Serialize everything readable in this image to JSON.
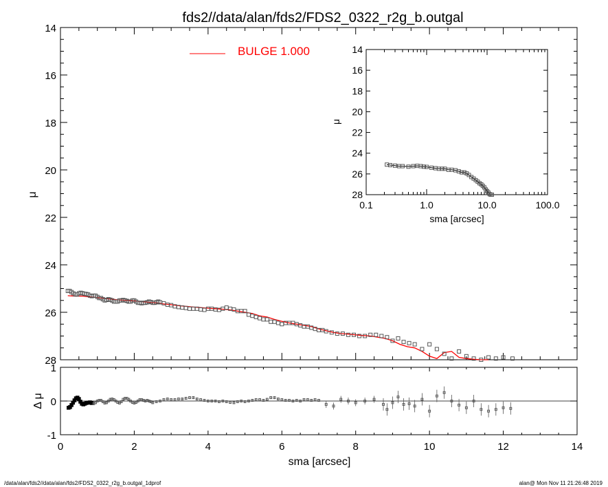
{
  "title": "fds2//data/alan/fds2/FDS2_0322_r2g_b.outgal",
  "footer": {
    "left": "/data/alan/fds2//data/alan/fds2/FDS2_0322_r2g_b.outgal_1dprof",
    "right": "alan@  Mon Nov 11 21:26:48 2019"
  },
  "colors": {
    "model": "#ff0000",
    "points": "#555555",
    "axes": "#000000"
  },
  "chart_data": [
    {
      "id": "main",
      "type": "scatter",
      "xlabel": "",
      "ylabel": "μ",
      "xlim": [
        0,
        14
      ],
      "ylim": [
        28,
        14
      ],
      "yticks": [
        "14",
        "16",
        "18",
        "20",
        "22",
        "24",
        "26",
        "28"
      ],
      "legend": {
        "label": "BULGE  1.000",
        "placement": "top-center"
      },
      "series": [
        {
          "name": "data",
          "x": [
            0.2,
            0.25,
            0.3,
            0.35,
            0.4,
            0.45,
            0.5,
            0.55,
            0.6,
            0.65,
            0.7,
            0.75,
            0.8,
            0.85,
            0.9,
            0.95,
            1.0,
            1.05,
            1.1,
            1.15,
            1.2,
            1.25,
            1.3,
            1.35,
            1.4,
            1.45,
            1.5,
            1.55,
            1.6,
            1.65,
            1.7,
            1.75,
            1.8,
            1.85,
            1.9,
            1.95,
            2.0,
            2.05,
            2.1,
            2.15,
            2.2,
            2.25,
            2.3,
            2.35,
            2.4,
            2.45,
            2.5,
            2.55,
            2.6,
            2.65,
            2.7,
            2.8,
            2.9,
            3.0,
            3.1,
            3.2,
            3.3,
            3.4,
            3.5,
            3.6,
            3.7,
            3.8,
            3.9,
            4.0,
            4.1,
            4.2,
            4.3,
            4.4,
            4.5,
            4.6,
            4.7,
            4.8,
            4.9,
            5.0,
            5.1,
            5.2,
            5.3,
            5.4,
            5.5,
            5.6,
            5.7,
            5.8,
            5.9,
            6.0,
            6.1,
            6.2,
            6.3,
            6.4,
            6.5,
            6.6,
            6.7,
            6.8,
            6.9,
            7.0,
            7.1,
            7.2,
            7.35,
            7.5,
            7.65,
            7.8,
            7.95,
            8.1,
            8.25,
            8.4,
            8.55,
            8.7,
            8.85,
            9.0,
            9.15,
            9.3,
            9.45,
            9.6,
            9.8,
            10.0,
            10.2,
            10.4,
            10.6,
            10.8,
            11.0,
            11.2,
            11.4,
            11.6,
            11.8,
            12.0,
            12.25
          ],
          "y": [
            25.1,
            25.1,
            25.15,
            25.2,
            25.25,
            25.25,
            25.2,
            25.18,
            25.2,
            25.22,
            25.23,
            25.25,
            25.3,
            25.32,
            25.3,
            25.3,
            25.35,
            25.4,
            25.4,
            25.45,
            25.5,
            25.48,
            25.45,
            25.47,
            25.5,
            25.55,
            25.55,
            25.55,
            25.5,
            25.5,
            25.48,
            25.5,
            25.52,
            25.55,
            25.55,
            25.5,
            25.5,
            25.55,
            25.6,
            25.6,
            25.62,
            25.6,
            25.6,
            25.58,
            25.55,
            25.57,
            25.6,
            25.6,
            25.58,
            25.55,
            25.58,
            25.62,
            25.68,
            25.7,
            25.75,
            25.78,
            25.8,
            25.82,
            25.85,
            25.85,
            25.85,
            25.88,
            25.9,
            25.85,
            25.85,
            25.88,
            25.9,
            25.85,
            25.8,
            25.85,
            25.88,
            25.95,
            25.95,
            25.95,
            26.1,
            26.15,
            26.2,
            26.25,
            26.3,
            26.3,
            26.4,
            26.4,
            26.45,
            26.5,
            26.45,
            26.45,
            26.45,
            26.5,
            26.55,
            26.6,
            26.6,
            26.65,
            26.7,
            26.75,
            26.75,
            26.8,
            26.85,
            26.9,
            26.9,
            26.95,
            26.95,
            27.0,
            27.0,
            26.95,
            26.95,
            27.0,
            27.05,
            27.2,
            27.1,
            27.25,
            27.3,
            27.35,
            27.55,
            27.35,
            27.55,
            27.75,
            27.95,
            27.65,
            27.85,
            27.95,
            28.0,
            27.9,
            27.95,
            27.9,
            27.95
          ]
        },
        {
          "name": "BULGE  1.000",
          "x": [
            0.2,
            0.4,
            0.6,
            0.8,
            1.0,
            1.2,
            1.4,
            1.6,
            1.8,
            2.0,
            2.2,
            2.4,
            2.6,
            2.8,
            3.0,
            3.2,
            3.4,
            3.6,
            3.8,
            4.0,
            4.2,
            4.4,
            4.6,
            4.8,
            5.0,
            5.2,
            5.4,
            5.6,
            5.8,
            6.0,
            6.2,
            6.4,
            6.6,
            6.8,
            7.0,
            7.2,
            7.4,
            7.6,
            7.8,
            8.0,
            8.2,
            8.4,
            8.6,
            8.8,
            9.0,
            9.2,
            9.4,
            9.6,
            9.8,
            10.0,
            10.2,
            10.4,
            10.6,
            10.8,
            11.0,
            11.2,
            11.4,
            11.6
          ],
          "y": [
            25.3,
            25.32,
            25.32,
            25.35,
            25.38,
            25.42,
            25.45,
            25.48,
            25.5,
            25.52,
            25.55,
            25.58,
            25.6,
            25.65,
            25.68,
            25.72,
            25.75,
            25.78,
            25.8,
            25.83,
            25.85,
            25.87,
            25.9,
            25.95,
            26.0,
            26.05,
            26.15,
            26.2,
            26.3,
            26.38,
            26.45,
            26.5,
            26.55,
            26.6,
            26.7,
            26.78,
            26.85,
            26.9,
            26.92,
            26.95,
            26.98,
            27.0,
            27.05,
            27.1,
            27.2,
            27.35,
            27.45,
            27.5,
            27.65,
            27.85,
            27.95,
            27.7,
            27.65,
            27.9,
            27.95,
            27.98,
            28.0,
            28.0
          ]
        }
      ]
    },
    {
      "id": "residual",
      "type": "scatter",
      "xlabel": "sma [arcsec]",
      "ylabel": "Δ μ",
      "xlim": [
        0,
        14
      ],
      "ylim": [
        -1,
        1
      ],
      "xticks": [
        "0",
        "2",
        "4",
        "6",
        "8",
        "10",
        "12",
        "14"
      ],
      "yticks": [
        "-1",
        "0",
        "1"
      ],
      "series": [
        {
          "name": "residual",
          "x": [
            0.22,
            0.26,
            0.3,
            0.34,
            0.38,
            0.42,
            0.46,
            0.5,
            0.54,
            0.58,
            0.62,
            0.66,
            0.7,
            0.75,
            0.8,
            0.85,
            0.9,
            0.95,
            1.0,
            1.05,
            1.1,
            1.15,
            1.2,
            1.25,
            1.3,
            1.35,
            1.4,
            1.45,
            1.5,
            1.55,
            1.6,
            1.65,
            1.7,
            1.75,
            1.8,
            1.85,
            1.9,
            1.95,
            2.0,
            2.05,
            2.1,
            2.15,
            2.2,
            2.25,
            2.3,
            2.35,
            2.4,
            2.45,
            2.5,
            2.6,
            2.7,
            2.8,
            2.9,
            3.0,
            3.1,
            3.2,
            3.3,
            3.4,
            3.5,
            3.6,
            3.7,
            3.8,
            3.9,
            4.0,
            4.1,
            4.2,
            4.3,
            4.4,
            4.5,
            4.6,
            4.7,
            4.8,
            4.9,
            5.0,
            5.1,
            5.2,
            5.3,
            5.4,
            5.5,
            5.6,
            5.7,
            5.8,
            5.9,
            6.0,
            6.1,
            6.2,
            6.3,
            6.4,
            6.5,
            6.6,
            6.7,
            6.8,
            6.9,
            7.0,
            7.2,
            7.4,
            7.6,
            7.8,
            8.0,
            8.25,
            8.5,
            8.75,
            8.85,
            9.0,
            9.15,
            9.3,
            9.45,
            9.6,
            9.8,
            10.0,
            10.2,
            10.4,
            10.6,
            10.8,
            11.0,
            11.2,
            11.4,
            11.6,
            11.8,
            12.0,
            12.2
          ],
          "y": [
            -0.2,
            -0.18,
            -0.12,
            -0.05,
            0.02,
            0.08,
            0.1,
            0.06,
            -0.02,
            -0.08,
            -0.1,
            -0.08,
            -0.06,
            -0.05,
            -0.04,
            -0.06,
            -0.08,
            -0.05,
            0.0,
            0.02,
            0.02,
            -0.02,
            -0.06,
            -0.05,
            0.0,
            0.05,
            0.06,
            0.04,
            0.0,
            -0.04,
            -0.06,
            -0.02,
            0.05,
            0.08,
            0.08,
            0.05,
            0.0,
            -0.04,
            -0.06,
            -0.04,
            0.0,
            0.04,
            0.04,
            0.02,
            0.0,
            0.02,
            0.0,
            -0.02,
            -0.05,
            -0.02,
            0.0,
            0.04,
            0.06,
            0.04,
            0.04,
            0.06,
            0.06,
            0.08,
            0.1,
            0.1,
            0.06,
            0.04,
            0.02,
            0.0,
            0.0,
            0.0,
            -0.02,
            0.0,
            -0.02,
            -0.04,
            -0.05,
            -0.02,
            0.0,
            -0.02,
            0.0,
            0.02,
            0.04,
            0.04,
            0.02,
            0.05,
            0.1,
            0.1,
            0.06,
            0.04,
            0.02,
            0.02,
            0.0,
            0.02,
            0.0,
            0.04,
            0.04,
            0.02,
            0.04,
            0.02,
            -0.1,
            -0.15,
            0.05,
            0.0,
            -0.05,
            0.0,
            0.05,
            -0.1,
            -0.25,
            -0.05,
            0.12,
            -0.1,
            -0.08,
            -0.15,
            0.05,
            -0.3,
            0.15,
            0.25,
            0.0,
            -0.12,
            -0.2,
            0.0,
            -0.25,
            -0.3,
            -0.25,
            -0.2,
            -0.22
          ]
        }
      ]
    },
    {
      "id": "inset",
      "type": "scatter",
      "xlabel": "sma [arcsec]",
      "ylabel": "μ",
      "xscale": "log",
      "xlim": [
        0.1,
        100.0
      ],
      "ylim": [
        28,
        14
      ],
      "xticks": [
        "0.1",
        "1.0",
        "10.0",
        "100.0"
      ],
      "yticks": [
        "14",
        "16",
        "18",
        "20",
        "22",
        "24",
        "26",
        "28"
      ],
      "series": [
        {
          "name": "data",
          "x": [
            0.22,
            0.25,
            0.3,
            0.35,
            0.4,
            0.5,
            0.6,
            0.7,
            0.8,
            0.9,
            1.0,
            1.2,
            1.4,
            1.6,
            1.8,
            2.0,
            2.3,
            2.6,
            3.0,
            3.4,
            3.8,
            4.2,
            4.6,
            5.0,
            5.5,
            6.0,
            6.5,
            7.0,
            7.5,
            8.0,
            8.5,
            9.0,
            9.5,
            10.0,
            10.5,
            11.0,
            11.5,
            12.0
          ],
          "y": [
            25.1,
            25.15,
            25.2,
            25.25,
            25.25,
            25.3,
            25.25,
            25.22,
            25.25,
            25.3,
            25.32,
            25.4,
            25.45,
            25.5,
            25.5,
            25.5,
            25.6,
            25.6,
            25.65,
            25.75,
            25.85,
            25.85,
            25.95,
            26.1,
            26.3,
            26.45,
            26.6,
            26.75,
            26.9,
            27.0,
            27.15,
            27.3,
            27.5,
            27.65,
            27.8,
            27.95,
            28.0,
            28.1
          ]
        }
      ]
    }
  ]
}
